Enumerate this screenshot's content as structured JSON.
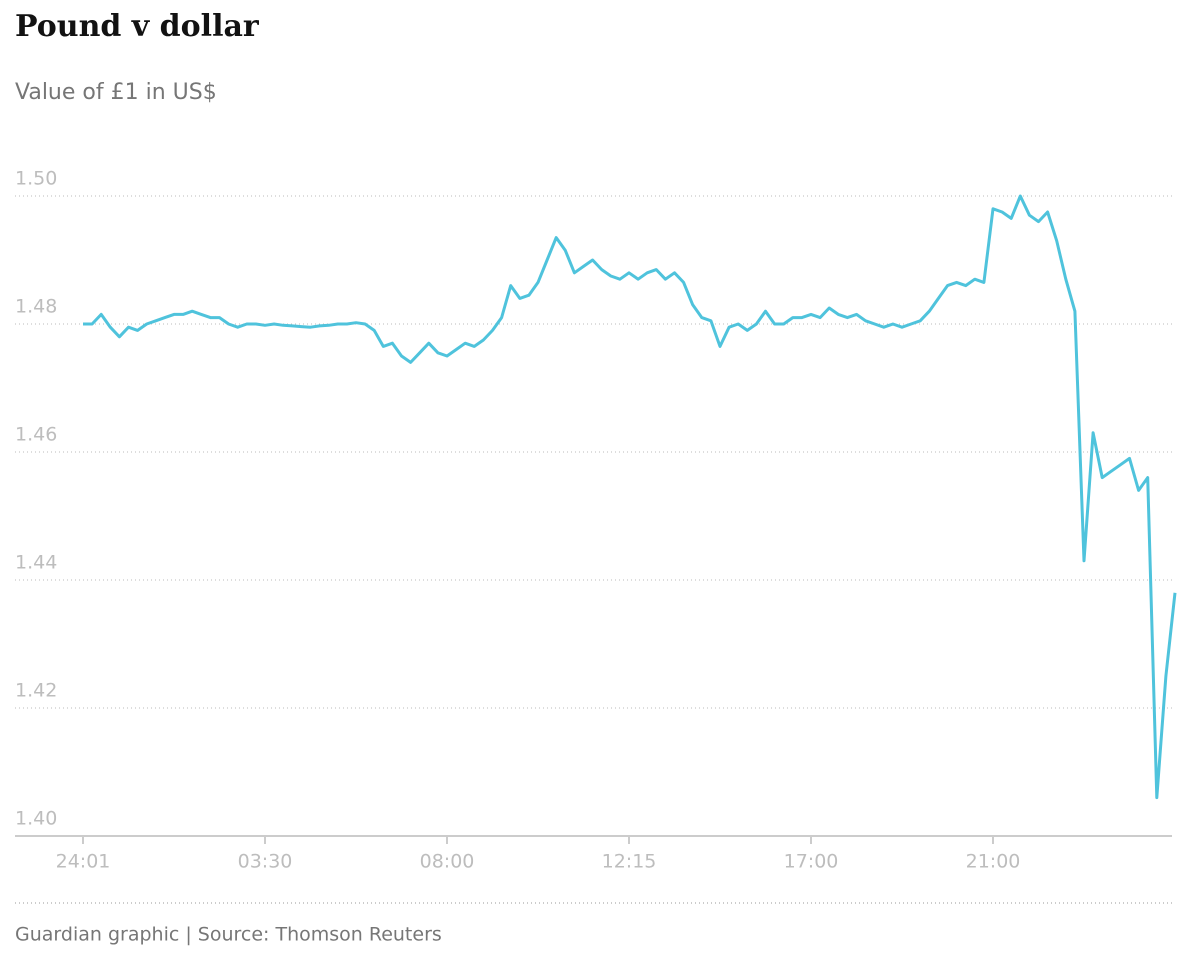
{
  "chart_data": {
    "type": "line",
    "title": "Pound v dollar",
    "subtitle": "Value of £1 in US$",
    "source": "Guardian graphic | Source: Thomson Reuters",
    "categories": [
      "24:01",
      null,
      null,
      null,
      null,
      null,
      null,
      null,
      null,
      null,
      null,
      null,
      null,
      null,
      null,
      null,
      null,
      null,
      null,
      null,
      "03:30",
      null,
      null,
      null,
      null,
      null,
      null,
      null,
      null,
      null,
      null,
      null,
      null,
      null,
      null,
      null,
      null,
      null,
      null,
      null,
      "08:00",
      null,
      null,
      null,
      null,
      null,
      null,
      null,
      null,
      null,
      null,
      null,
      null,
      null,
      null,
      null,
      null,
      null,
      null,
      null,
      "12:15",
      null,
      null,
      null,
      null,
      null,
      null,
      null,
      null,
      null,
      null,
      null,
      null,
      null,
      null,
      null,
      null,
      null,
      null,
      null,
      "17:00",
      null,
      null,
      null,
      null,
      null,
      null,
      null,
      null,
      null,
      null,
      null,
      null,
      null,
      null,
      null,
      null,
      null,
      null,
      null,
      "21:00",
      null,
      null,
      null,
      null,
      null,
      null,
      null,
      null,
      null,
      null,
      null,
      null,
      null,
      null,
      null,
      null,
      null,
      null,
      null,
      null
    ],
    "values": [
      1.48,
      1.48,
      1.4815,
      1.4795,
      1.478,
      1.4795,
      1.479,
      1.48,
      1.4805,
      1.481,
      1.4815,
      1.4815,
      1.482,
      1.4815,
      1.481,
      1.481,
      1.48,
      1.4795,
      1.48,
      1.48,
      1.4798,
      1.48,
      1.4798,
      1.4797,
      1.4796,
      1.4795,
      1.4797,
      1.4798,
      1.48,
      1.48,
      1.4802,
      1.48,
      1.479,
      1.4765,
      1.477,
      1.475,
      1.474,
      1.4755,
      1.477,
      1.4755,
      1.475,
      1.476,
      1.477,
      1.4765,
      1.4775,
      1.479,
      1.481,
      1.486,
      1.484,
      1.4845,
      1.4865,
      1.49,
      1.4935,
      1.4915,
      1.488,
      1.489,
      1.49,
      1.4885,
      1.4875,
      1.487,
      1.488,
      1.487,
      1.488,
      1.4885,
      1.487,
      1.488,
      1.4865,
      1.483,
      1.481,
      1.4805,
      1.4765,
      1.4795,
      1.48,
      1.479,
      1.48,
      1.482,
      1.48,
      1.48,
      1.481,
      1.481,
      1.4815,
      1.481,
      1.4825,
      1.4815,
      1.481,
      1.4815,
      1.4805,
      1.48,
      1.4795,
      1.48,
      1.4795,
      1.48,
      1.4805,
      1.482,
      1.484,
      1.486,
      1.4865,
      1.486,
      1.487,
      1.4865,
      1.498,
      1.4975,
      1.4965,
      1.5,
      1.497,
      1.496,
      1.4975,
      1.493,
      1.487,
      1.482,
      1.443,
      1.463,
      1.456,
      1.457,
      1.458,
      1.459,
      1.454,
      1.456,
      1.406,
      1.425,
      1.438
    ],
    "color": "#4fc3dc",
    "ylim": [
      1.4,
      1.5
    ],
    "yticks": [
      {
        "value": 1.4,
        "label": "1.40"
      },
      1.42,
      1.44,
      1.46,
      1.48,
      {
        "value": 1.5,
        "label": "1.50"
      }
    ],
    "grid": true
  }
}
